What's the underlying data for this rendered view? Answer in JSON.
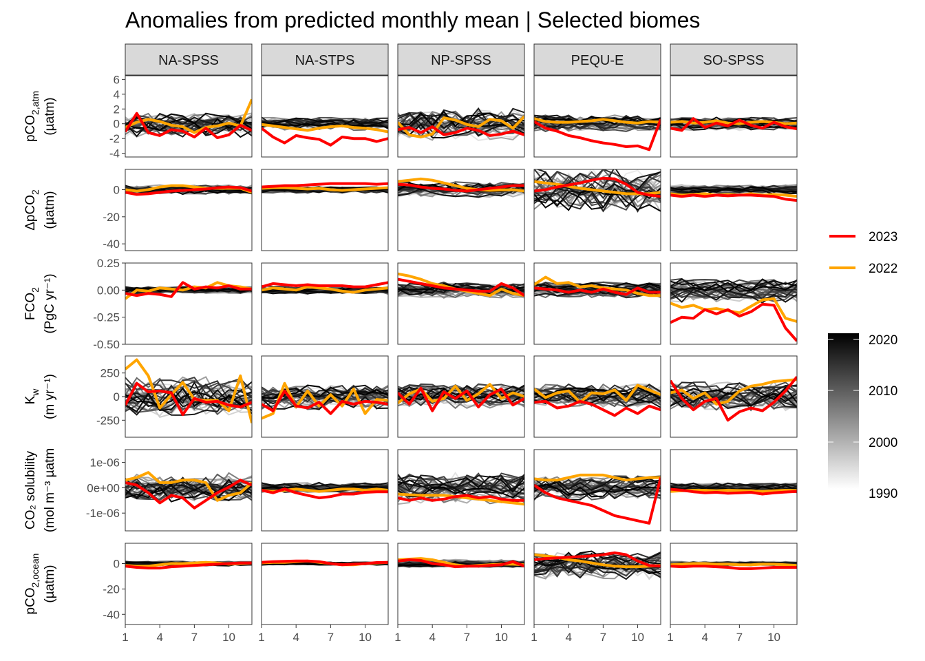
{
  "chart_data": {
    "type": "line",
    "title": "Anomalies from predicted monthly mean | Selected biomes",
    "x_ticks": [
      1,
      4,
      7,
      10
    ],
    "xlim": [
      1,
      12
    ],
    "biomes": [
      "NA-SPSS",
      "NA-STPS",
      "NP-SPSS",
      "PEQU-E",
      "SO-SPSS"
    ],
    "rows": [
      {
        "key": "pco2atm",
        "label_main": "pCO",
        "label_sub": "2,atm",
        "label_unit": "(µatm)",
        "ylim": [
          -4.5,
          6.5
        ],
        "yticks": [
          -4,
          -2,
          0,
          2,
          4,
          6
        ],
        "ytick_labels": [
          "-4",
          "-2",
          "0",
          "2",
          "4",
          "6"
        ],
        "spread": [
          1.4,
          0.8,
          1.8,
          0.9,
          0.7
        ]
      },
      {
        "key": "dpco2",
        "label_main": "ΔpCO",
        "label_sub": "2",
        "label_unit": "(µatm)",
        "ylim": [
          -45,
          15
        ],
        "yticks": [
          -40,
          -20,
          0
        ],
        "ytick_labels": [
          "-40",
          "-20",
          "0"
        ],
        "spread": [
          3,
          2,
          5,
          14,
          3
        ]
      },
      {
        "key": "fco2",
        "label_main": "FCO",
        "label_sub": "2",
        "label_unit": "(PgC yr⁻¹)",
        "ylim": [
          -0.5,
          0.25
        ],
        "yticks": [
          -0.5,
          -0.25,
          0,
          0.25
        ],
        "ytick_labels": [
          "-0.50",
          "-0.25",
          "0.00",
          "0.25"
        ],
        "spread": [
          0.03,
          0.03,
          0.06,
          0.06,
          0.09
        ]
      },
      {
        "key": "kw",
        "label_main": "K",
        "label_sub": "w",
        "label_unit": "(m yr⁻¹)",
        "ylim": [
          -430,
          430
        ],
        "yticks": [
          -250,
          0,
          250
        ],
        "ytick_labels": [
          "-250",
          "0",
          "250"
        ],
        "spread": [
          170,
          110,
          110,
          110,
          130
        ]
      },
      {
        "key": "sol",
        "label_main": "CO₂ solubility",
        "label_sub": "",
        "label_unit": "(mol m⁻³ µatm",
        "ylim": [
          -1.7e-06,
          1.5e-06
        ],
        "yticks": [
          -1e-06,
          0,
          1e-06
        ],
        "ytick_labels": [
          "-1e-06",
          "0e+00",
          "1e-06"
        ],
        "spread": [
          4.5e-07,
          1.6e-07,
          5e-07,
          4e-07,
          1.6e-07
        ]
      },
      {
        "key": "pco2ocean",
        "label_main": "pCO",
        "label_sub": "2,ocean",
        "label_unit": "(µatm)",
        "ylim": [
          -48,
          16
        ],
        "yticks": [
          -40,
          -20,
          0
        ],
        "ytick_labels": [
          "-40",
          "-20",
          "0"
        ],
        "spread": [
          1.5,
          1,
          2.5,
          10,
          1.5
        ]
      }
    ],
    "highlight_series": [
      {
        "name": "2023",
        "color": "#ff0000",
        "values": [
          [
            [
              -1.1,
              1.4,
              -1.2,
              -1.6,
              -0.8,
              -1.0,
              -1.8,
              -0.6,
              -1.9,
              -1.5,
              -0.2,
              -0.9
            ],
            [
              -0.6,
              -1.8,
              -2.6,
              -1.6,
              -1.9,
              -2.1,
              -2.9,
              -1.8,
              -2.0,
              -2.0,
              -2.4,
              -2.0
            ],
            [
              -0.8,
              -0.5,
              -1.2,
              -0.4,
              -1.5,
              -1.2,
              -0.6,
              -0.9,
              -1.6,
              -1.4,
              -1.0,
              -1.5
            ],
            [
              0.3,
              -0.6,
              -1.0,
              -1.6,
              -1.9,
              -2.3,
              -2.6,
              -2.8,
              -3.1,
              -3.0,
              -3.5,
              0.6
            ],
            [
              -0.6,
              -0.9,
              0.7,
              -0.5,
              0.1,
              -0.3,
              0.5,
              -0.2,
              -0.6,
              0.2,
              -0.4,
              -0.7
            ]
          ],
          [
            [
              -2,
              -3.5,
              -3,
              -2,
              -1,
              -0.5,
              0,
              0.5,
              1.5,
              2,
              1.5,
              -1
            ],
            [
              2,
              2.5,
              3,
              3,
              3.5,
              4,
              4.5,
              4.5,
              4.5,
              4.5,
              4,
              4.5
            ],
            [
              4,
              3.5,
              2,
              1,
              0.5,
              -0.5,
              -1,
              0,
              1,
              2,
              3,
              3
            ],
            [
              -1,
              0,
              2,
              3.5,
              5,
              7,
              8.5,
              8,
              4,
              -2,
              -4,
              -5
            ],
            [
              -4,
              -5,
              -4,
              -5,
              -4,
              -4.5,
              -4,
              -4,
              -4.5,
              -5,
              -7,
              -8
            ]
          ],
          [
            [
              -0.03,
              -0.05,
              -0.03,
              -0.04,
              -0.06,
              0.07,
              0.01,
              0.03,
              0.02,
              0.04,
              0.01,
              0.01
            ],
            [
              0.03,
              0.06,
              0.05,
              0.04,
              0.05,
              0.04,
              0.04,
              0.04,
              0.03,
              0.03,
              0.05,
              0.07
            ],
            [
              0.1,
              0.08,
              0.06,
              0.04,
              0.02,
              0.01,
              0.0,
              -0.01,
              -0.01,
              0.06,
              0.02,
              -0.05
            ],
            [
              0.02,
              0.01,
              0.0,
              -0.02,
              0.0,
              -0.02,
              0.01,
              -0.02,
              -0.04,
              0.02,
              -0.02,
              -0.02
            ],
            [
              -0.3,
              -0.25,
              -0.26,
              -0.18,
              -0.22,
              -0.18,
              -0.24,
              -0.2,
              -0.13,
              -0.14,
              -0.35,
              -0.47
            ]
          ],
          [
            [
              -90,
              140,
              50,
              60,
              40,
              -190,
              -20,
              -60,
              -50,
              -90,
              -110,
              -60
            ],
            [
              -80,
              -150,
              60,
              -100,
              -120,
              -60,
              -180,
              -50,
              -80,
              -50,
              -60,
              -80
            ],
            [
              40,
              -80,
              90,
              -150,
              50,
              -20,
              60,
              -110,
              20,
              80,
              -90,
              -20
            ],
            [
              -60,
              -50,
              -120,
              -100,
              -50,
              -80,
              -140,
              -200,
              -120,
              -180,
              -100,
              -140
            ],
            [
              170,
              -20,
              -140,
              -50,
              -20,
              -250,
              -160,
              -120,
              -150,
              -60,
              60,
              210
            ]
          ],
          [
            [
              2e-07,
              1e-07,
              -2e-07,
              -6e-07,
              -3e-07,
              -4e-07,
              -8e-07,
              -5e-07,
              -2e-07,
              2e-08,
              3e-07,
              1e-07
            ],
            [
              -1e-07,
              -2e-07,
              -5e-08,
              -2e-07,
              -3e-07,
              -4e-07,
              -3.5e-07,
              -2.5e-07,
              -2.5e-07,
              -1.8e-07,
              -1.6e-07,
              -1.6e-07
            ],
            [
              -4e-07,
              -5e-07,
              -4e-07,
              -5e-07,
              -4.5e-07,
              -3.5e-07,
              -3e-07,
              -4e-07,
              -3.5e-07,
              -4.5e-07,
              -5e-07,
              -5e-07
            ],
            [
              1e-07,
              -2e-07,
              -4e-07,
              -5e-07,
              -6e-07,
              -7e-07,
              -9e-07,
              -1.1e-06,
              -1.2e-06,
              -1.3e-06,
              -1.4e-06,
              4e-07
            ],
            [
              -6e-08,
              -1e-07,
              -1.6e-07,
              -2e-07,
              -1.8e-07,
              -2.2e-07,
              -2e-07,
              -1.8e-07,
              -2.5e-07,
              -2e-07,
              -1.7e-07,
              -1.5e-07
            ]
          ],
          [
            [
              -2,
              -3,
              -3.5,
              -3.5,
              -2.5,
              -2,
              -1.5,
              -1,
              -0.5,
              0,
              0.5,
              0.5
            ],
            [
              1,
              1.5,
              1.8,
              2,
              2,
              1.5,
              0,
              -1,
              -0.5,
              0,
              0.8,
              1
            ],
            [
              2,
              3,
              2.5,
              0,
              -1,
              -2.5,
              -2,
              -2,
              -1.5,
              -1,
              1.5,
              -2
            ],
            [
              3,
              4,
              4.5,
              5,
              5.5,
              6,
              7,
              8.5,
              7,
              2,
              -1.5,
              -2
            ],
            [
              -2,
              -2.5,
              -2,
              -2,
              -2.5,
              -3,
              -4,
              -4,
              -3.5,
              -3,
              -3,
              -3
            ]
          ]
        ]
      },
      {
        "name": "2022",
        "color": "#ffa500",
        "values": [
          [
            [
              -0.5,
              0.2,
              0.6,
              0.3,
              -0.2,
              -0.4,
              -1.2,
              -0.5,
              -0.3,
              0.1,
              -0.3,
              3.3
            ],
            [
              -0.1,
              -0.3,
              -0.5,
              -0.7,
              -0.9,
              -0.6,
              -0.4,
              -0.3,
              -0.5,
              -0.6,
              -0.8,
              -1.1
            ],
            [
              0.2,
              -1.5,
              -1.8,
              -1.4,
              0.8,
              0.5,
              -0.1,
              -0.4,
              0.6,
              0.4,
              -0.6,
              1.0
            ],
            [
              0.7,
              0.3,
              0.2,
              0.2,
              0.3,
              0.4,
              0.6,
              0.4,
              0.2,
              0.1,
              0.3,
              0.2
            ],
            [
              0.2,
              0.3,
              0.1,
              0.2,
              0.4,
              0.1,
              0.0,
              0.2,
              0.3,
              0.2,
              0.0,
              0.1
            ]
          ],
          [
            [
              0,
              -1,
              0,
              2,
              3,
              3,
              2,
              1,
              1,
              1,
              1,
              -2
            ],
            [
              1,
              1.5,
              1.5,
              1,
              0.5,
              1,
              0,
              -0.5,
              0,
              0.5,
              1,
              1.5
            ],
            [
              6,
              7,
              8,
              7,
              5,
              3,
              1,
              0,
              -0.5,
              -0.2,
              0,
              -1
            ],
            [
              6,
              5,
              4,
              2.5,
              1,
              0,
              -1,
              -2,
              -3,
              -3,
              -3,
              -2
            ],
            [
              -3,
              -4,
              -3.5,
              -3,
              -4,
              -3.5,
              -4,
              -3,
              -4,
              -3.5,
              -4,
              -5
            ]
          ],
          [
            [
              -0.08,
              0.0,
              -0.01,
              0.02,
              0.01,
              0.0,
              0.03,
              0.02,
              0.07,
              0.04,
              0.03,
              0.01
            ],
            [
              0.0,
              0.02,
              0.01,
              0.0,
              0.03,
              0.02,
              0.01,
              -0.01,
              -0.02,
              0.0,
              0.01,
              0.02
            ],
            [
              0.15,
              0.13,
              0.1,
              0.06,
              0.04,
              0.01,
              -0.01,
              -0.03,
              -0.05,
              0.01,
              -0.03,
              -0.05
            ],
            [
              0.05,
              0.12,
              0.06,
              0.07,
              0.03,
              0.04,
              0.02,
              0.01,
              0.0,
              -0.03,
              -0.05,
              -0.05
            ],
            [
              -0.12,
              -0.16,
              -0.14,
              -0.18,
              -0.17,
              -0.19,
              -0.21,
              -0.15,
              -0.09,
              -0.08,
              -0.26,
              -0.29
            ]
          ],
          [
            [
              290,
              390,
              220,
              -120,
              20,
              150,
              -30,
              -40,
              -40,
              -150,
              220,
              -280
            ],
            [
              -230,
              -180,
              140,
              -110,
              60,
              -100,
              20,
              -100,
              80,
              -180,
              -30,
              -40
            ],
            [
              -70,
              30,
              80,
              -50,
              -20,
              110,
              -40,
              30,
              130,
              -20,
              40,
              0
            ],
            [
              80,
              -10,
              40,
              60,
              -60,
              40,
              30,
              70,
              -40,
              120,
              70,
              20
            ],
            [
              40,
              70,
              -20,
              40,
              -80,
              -50,
              60,
              110,
              130,
              160,
              170,
              180
            ]
          ],
          [
            [
              3e-07,
              4e-07,
              6e-07,
              2e-07,
              2e-07,
              3e-07,
              3e-07,
              2e-07,
              -5e-07,
              -3e-07,
              -2e-07,
              2e-07
            ],
            [
              -1e-07,
              -1.5e-07,
              -1e-07,
              -5e-08,
              -1e-07,
              -1.5e-07,
              -1e-07,
              -5e-08,
              -5e-08,
              -1e-07,
              -5e-08,
              -1e-07
            ],
            [
              -2.5e-07,
              -2.8e-07,
              -3e-07,
              -3e-07,
              -3e-07,
              -3.5e-07,
              -4e-07,
              -4.5e-07,
              -5e-07,
              -5.5e-07,
              -6e-07,
              -6.5e-07
            ],
            [
              3.5e-07,
              3e-07,
              3e-07,
              4e-07,
              5e-07,
              5e-07,
              5e-07,
              4e-07,
              3e-07,
              3.5e-07,
              4e-07,
              4e-07
            ],
            [
              -1.5e-07,
              -1.2e-07,
              -1e-07,
              -1e-07,
              -1.2e-07,
              -1e-07,
              -1.1e-07,
              -1.2e-07,
              -1.5e-07,
              -1.2e-07,
              -1e-07,
              -1.1e-07
            ]
          ],
          [
            [
              -1.5,
              -2,
              -2,
              -1,
              0,
              0,
              0.5,
              1,
              0.5,
              -0.5,
              0,
              0.5
            ],
            [
              0.5,
              1,
              1,
              1.5,
              2,
              1,
              0,
              -1,
              -1,
              0,
              0.5,
              1
            ],
            [
              3,
              3.5,
              4,
              3,
              1,
              -1,
              -2,
              -1.5,
              -1,
              -0.5,
              -0.5,
              -1
            ],
            [
              7,
              6,
              5,
              3,
              2,
              0.5,
              -1,
              -2,
              -2.5,
              -2.5,
              -2,
              -1.5
            ],
            [
              -1,
              -0.5,
              0,
              0,
              -0.5,
              -0.5,
              -1,
              -1,
              -0.5,
              -0.5,
              -1,
              -1.5
            ]
          ]
        ]
      }
    ],
    "background_years": {
      "from": 1990,
      "to": 2021
    },
    "legend": {
      "series": [
        "2023",
        "2022"
      ],
      "gradient_title": "",
      "gradient_ticks": [
        "2020",
        "2010",
        "2000",
        "1990"
      ],
      "gradient_low_color": "#ffffff",
      "gradient_high_color": "#000000"
    }
  }
}
